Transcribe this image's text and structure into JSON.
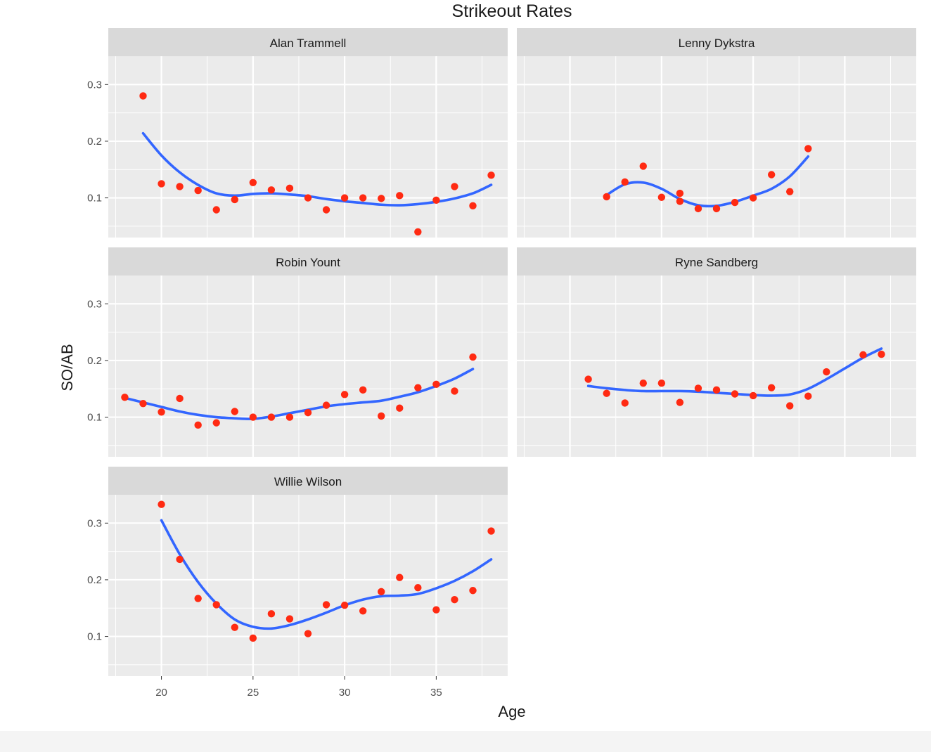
{
  "chart_data": {
    "type": "scatter",
    "title": "Strikeout Rates",
    "xlabel": "Age",
    "ylabel": "SO/AB",
    "xlim": [
      17.1,
      38.9
    ],
    "ylim": [
      0.03,
      0.35
    ],
    "xticks": [
      20,
      25,
      30,
      35
    ],
    "yticks": [
      0.1,
      0.2,
      0.3
    ],
    "grid": true,
    "point_color": "#ff2a12",
    "smooth_color": "#3366ff",
    "panel_background": "#ebebeb",
    "strip_background": "#d9d9d9",
    "panels": [
      {
        "name": "Alan Trammell",
        "points": [
          [
            19,
            0.28
          ],
          [
            20,
            0.125
          ],
          [
            21,
            0.12
          ],
          [
            22,
            0.113
          ],
          [
            23,
            0.079
          ],
          [
            24,
            0.097
          ],
          [
            25,
            0.127
          ],
          [
            26,
            0.114
          ],
          [
            27,
            0.117
          ],
          [
            28,
            0.1
          ],
          [
            29,
            0.079
          ],
          [
            30,
            0.1
          ],
          [
            31,
            0.1
          ],
          [
            32,
            0.099
          ],
          [
            33,
            0.104
          ],
          [
            34,
            0.04
          ],
          [
            35,
            0.096
          ],
          [
            36,
            0.12
          ],
          [
            37,
            0.086
          ],
          [
            38,
            0.14
          ]
        ],
        "smooth": [
          [
            19,
            0.214
          ],
          [
            20,
            0.175
          ],
          [
            21,
            0.145
          ],
          [
            22,
            0.123
          ],
          [
            23,
            0.108
          ],
          [
            24,
            0.104
          ],
          [
            25,
            0.107
          ],
          [
            26,
            0.108
          ],
          [
            27,
            0.106
          ],
          [
            28,
            0.103
          ],
          [
            29,
            0.098
          ],
          [
            30,
            0.094
          ],
          [
            31,
            0.091
          ],
          [
            32,
            0.088
          ],
          [
            33,
            0.087
          ],
          [
            34,
            0.089
          ],
          [
            35,
            0.093
          ],
          [
            36,
            0.099
          ],
          [
            37,
            0.108
          ],
          [
            38,
            0.123
          ]
        ]
      },
      {
        "name": "Lenny Dykstra",
        "points": [
          [
            22,
            0.102
          ],
          [
            23,
            0.128
          ],
          [
            24,
            0.156
          ],
          [
            25,
            0.101
          ],
          [
            26,
            0.108
          ],
          [
            26,
            0.094
          ],
          [
            27,
            0.081
          ],
          [
            28,
            0.081
          ],
          [
            29,
            0.092
          ],
          [
            30,
            0.1
          ],
          [
            31,
            0.141
          ],
          [
            32,
            0.111
          ],
          [
            33,
            0.187
          ]
        ],
        "smooth": [
          [
            22,
            0.105
          ],
          [
            23,
            0.124
          ],
          [
            24,
            0.127
          ],
          [
            25,
            0.116
          ],
          [
            26,
            0.098
          ],
          [
            27,
            0.087
          ],
          [
            28,
            0.086
          ],
          [
            29,
            0.093
          ],
          [
            30,
            0.104
          ],
          [
            31,
            0.116
          ],
          [
            32,
            0.138
          ],
          [
            33,
            0.173
          ]
        ]
      },
      {
        "name": "Robin Yount",
        "points": [
          [
            18,
            0.135
          ],
          [
            19,
            0.124
          ],
          [
            20,
            0.109
          ],
          [
            21,
            0.133
          ],
          [
            22,
            0.086
          ],
          [
            23,
            0.09
          ],
          [
            24,
            0.11
          ],
          [
            25,
            0.1
          ],
          [
            26,
            0.1
          ],
          [
            27,
            0.1
          ],
          [
            28,
            0.108
          ],
          [
            29,
            0.121
          ],
          [
            30,
            0.14
          ],
          [
            31,
            0.148
          ],
          [
            32,
            0.102
          ],
          [
            33,
            0.116
          ],
          [
            34,
            0.152
          ],
          [
            35,
            0.158
          ],
          [
            36,
            0.146
          ],
          [
            37,
            0.206
          ]
        ],
        "smooth": [
          [
            18,
            0.134
          ],
          [
            19,
            0.126
          ],
          [
            20,
            0.118
          ],
          [
            21,
            0.11
          ],
          [
            22,
            0.104
          ],
          [
            23,
            0.1
          ],
          [
            24,
            0.098
          ],
          [
            25,
            0.097
          ],
          [
            26,
            0.101
          ],
          [
            27,
            0.107
          ],
          [
            28,
            0.113
          ],
          [
            29,
            0.119
          ],
          [
            30,
            0.123
          ],
          [
            31,
            0.126
          ],
          [
            32,
            0.129
          ],
          [
            33,
            0.136
          ],
          [
            34,
            0.144
          ],
          [
            35,
            0.155
          ],
          [
            36,
            0.168
          ],
          [
            37,
            0.185
          ]
        ]
      },
      {
        "name": "Ryne Sandberg",
        "points": [
          [
            21,
            0.167
          ],
          [
            22,
            0.142
          ],
          [
            23,
            0.125
          ],
          [
            24,
            0.16
          ],
          [
            25,
            0.16
          ],
          [
            26,
            0.126
          ],
          [
            27,
            0.151
          ],
          [
            28,
            0.148
          ],
          [
            29,
            0.141
          ],
          [
            30,
            0.138
          ],
          [
            31,
            0.152
          ],
          [
            32,
            0.12
          ],
          [
            33,
            0.137
          ],
          [
            34,
            0.18
          ],
          [
            36,
            0.21
          ],
          [
            37,
            0.211
          ]
        ],
        "smooth": [
          [
            21,
            0.155
          ],
          [
            22,
            0.151
          ],
          [
            23,
            0.148
          ],
          [
            24,
            0.146
          ],
          [
            25,
            0.146
          ],
          [
            26,
            0.146
          ],
          [
            27,
            0.145
          ],
          [
            28,
            0.143
          ],
          [
            29,
            0.141
          ],
          [
            30,
            0.139
          ],
          [
            31,
            0.138
          ],
          [
            32,
            0.14
          ],
          [
            33,
            0.15
          ],
          [
            34,
            0.167
          ],
          [
            35,
            0.186
          ],
          [
            36,
            0.205
          ],
          [
            37,
            0.221
          ]
        ]
      },
      {
        "name": "Willie Wilson",
        "points": [
          [
            20,
            0.333
          ],
          [
            21,
            0.236
          ],
          [
            22,
            0.167
          ],
          [
            23,
            0.156
          ],
          [
            24,
            0.116
          ],
          [
            25,
            0.097
          ],
          [
            26,
            0.14
          ],
          [
            27,
            0.131
          ],
          [
            28,
            0.105
          ],
          [
            29,
            0.156
          ],
          [
            30,
            0.155
          ],
          [
            31,
            0.145
          ],
          [
            32,
            0.179
          ],
          [
            33,
            0.204
          ],
          [
            34,
            0.186
          ],
          [
            35,
            0.147
          ],
          [
            36,
            0.165
          ],
          [
            37,
            0.181
          ],
          [
            38,
            0.286
          ]
        ],
        "smooth": [
          [
            20,
            0.305
          ],
          [
            21,
            0.245
          ],
          [
            22,
            0.196
          ],
          [
            23,
            0.158
          ],
          [
            24,
            0.13
          ],
          [
            25,
            0.117
          ],
          [
            26,
            0.114
          ],
          [
            27,
            0.12
          ],
          [
            28,
            0.13
          ],
          [
            29,
            0.142
          ],
          [
            30,
            0.155
          ],
          [
            31,
            0.165
          ],
          [
            32,
            0.171
          ],
          [
            33,
            0.172
          ],
          [
            34,
            0.175
          ],
          [
            35,
            0.185
          ],
          [
            36,
            0.198
          ],
          [
            37,
            0.215
          ],
          [
            38,
            0.236
          ]
        ]
      }
    ]
  }
}
